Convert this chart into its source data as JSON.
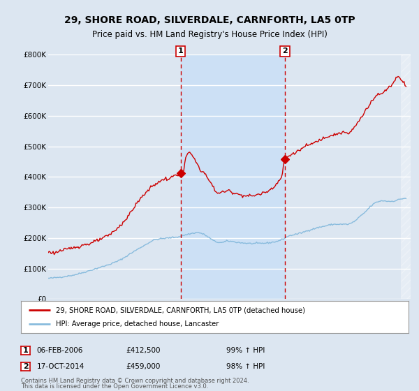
{
  "title": "29, SHORE ROAD, SILVERDALE, CARNFORTH, LA5 0TP",
  "subtitle": "Price paid vs. HM Land Registry's House Price Index (HPI)",
  "title_fontsize": 10,
  "subtitle_fontsize": 8.5,
  "ylabel_ticks": [
    "£0",
    "£100K",
    "£200K",
    "£300K",
    "£400K",
    "£500K",
    "£600K",
    "£700K",
    "£800K"
  ],
  "ytick_values": [
    0,
    100000,
    200000,
    300000,
    400000,
    500000,
    600000,
    700000,
    800000
  ],
  "ylim": [
    0,
    800000
  ],
  "xlim_start": 1995.0,
  "xlim_end": 2025.3,
  "background_color": "#dce6f1",
  "plot_bg_color": "#dce6f1",
  "shade_color": "#cce0f5",
  "grid_color": "#ffffff",
  "red_line_color": "#cc0000",
  "blue_line_color": "#88bbdd",
  "marker_vline_color": "#cc0000",
  "sale1_x": 2006.08,
  "sale1_y": 412500,
  "sale1_label": "1",
  "sale2_x": 2014.79,
  "sale2_y": 459000,
  "sale2_label": "2",
  "sale1_date": "06-FEB-2006",
  "sale1_price": "£412,500",
  "sale1_hpi": "99% ↑ HPI",
  "sale2_date": "17-OCT-2014",
  "sale2_price": "£459,000",
  "sale2_hpi": "98% ↑ HPI",
  "legend_line1": "29, SHORE ROAD, SILVERDALE, CARNFORTH, LA5 0TP (detached house)",
  "legend_line2": "HPI: Average price, detached house, Lancaster",
  "footer1": "Contains HM Land Registry data © Crown copyright and database right 2024.",
  "footer2": "This data is licensed under the Open Government Licence v3.0."
}
